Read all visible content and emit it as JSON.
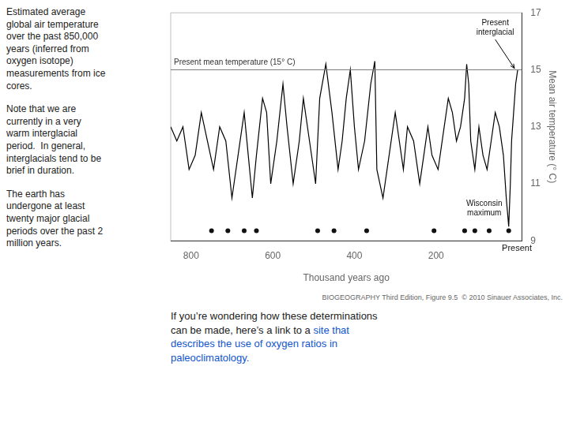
{
  "chart_data": {
    "type": "line",
    "title": "Estimated average\nglobal air temperature\nover the past 850,000\nyears (inferred from\noxygen isotope)\nmeasurements from ice\ncores.",
    "notes": [
      "Note that we are\ncurrently in a very\nwarm interglacial\nperiod.  In general,\ninterglacials tend to be\nbrief in duration.",
      "The earth has\nundergone at least\ntwenty major glacial\nperiods over the past 2\nmillion years."
    ],
    "footnote": {
      "text": "If you’re wondering how these determinations\ncan be made, here’s a link to a ",
      "link": "site that\ndescribes the use of oxygen ratios in\npaleoclimatology.",
      "color": "#1155cc"
    },
    "source": "BIOGEOGRAPHY Third Edition, Figure 9.5  © 2010 Sinauer Associates, Inc.",
    "xlabel": "Thousand years ago",
    "ylabel": "Mean air temperature (° C)",
    "xlim": [
      850,
      -10
    ],
    "ylim": [
      9,
      17
    ],
    "xticks": [
      800,
      600,
      400,
      200
    ],
    "yticks": [
      9,
      11,
      13,
      15,
      17
    ],
    "grid": false,
    "hlines": [
      {
        "y": 15,
        "label": "Present mean temperature (15° C)"
      }
    ],
    "annotations": [
      {
        "text": "Present\ninterglacial",
        "x": 8,
        "y": 15.05,
        "text_x": 55,
        "text_y": 16.45
      },
      {
        "text": "Wisconsin\nmaximum",
        "x": 82,
        "y": 10.5
      },
      {
        "text": "Present",
        "x": 2
      }
    ],
    "series": [
      {
        "type": "line",
        "color": "#000000",
        "x": [
          0,
          5,
          10,
          15,
          18,
          22,
          28,
          35,
          45,
          55,
          65,
          75,
          85,
          95,
          105,
          115,
          120,
          125,
          130,
          140,
          150,
          160,
          170,
          180,
          195,
          210,
          220,
          230,
          240,
          255,
          270,
          280,
          290,
          300,
          315,
          330,
          345,
          350,
          360,
          375,
          390,
          400,
          410,
          420,
          430,
          440,
          455,
          470,
          485,
          495,
          510,
          525,
          535,
          550,
          565,
          575,
          590,
          605,
          615,
          625,
          640,
          650,
          660,
          670,
          685,
          700,
          715,
          730,
          745,
          760,
          775,
          790,
          805,
          820,
          835,
          850
        ],
        "values": [
          15.0,
          14.5,
          13.5,
          12.5,
          11.0,
          9.5,
          10.5,
          12.0,
          13.0,
          13.5,
          12.5,
          11.5,
          12.0,
          13.0,
          11.5,
          12.5,
          14.5,
          15.2,
          14.0,
          13.0,
          12.5,
          13.5,
          14.0,
          13.0,
          11.5,
          12.0,
          13.0,
          12.0,
          11.0,
          12.5,
          13.0,
          11.5,
          12.5,
          13.5,
          12.0,
          10.5,
          11.5,
          15.3,
          14.5,
          12.5,
          11.5,
          13.0,
          15.0,
          14.0,
          12.5,
          11.5,
          13.5,
          15.2,
          14.0,
          11.0,
          12.5,
          14.0,
          12.5,
          11.0,
          13.0,
          14.5,
          12.5,
          11.0,
          13.5,
          14.0,
          12.0,
          10.5,
          12.0,
          13.5,
          12.0,
          10.5,
          12.5,
          13.0,
          11.5,
          12.5,
          13.5,
          12.0,
          11.5,
          13.0,
          12.5,
          13.0
        ]
      },
      {
        "type": "scatter",
        "marker": "circle",
        "color": "#111111",
        "x": [
          750,
          710,
          670,
          640,
          490,
          450,
          370,
          205,
          130,
          105,
          70,
          22
        ],
        "values": [
          9.35,
          9.35,
          9.35,
          9.35,
          9.35,
          9.35,
          9.35,
          9.35,
          9.35,
          9.35,
          9.35,
          9.35
        ]
      }
    ]
  }
}
